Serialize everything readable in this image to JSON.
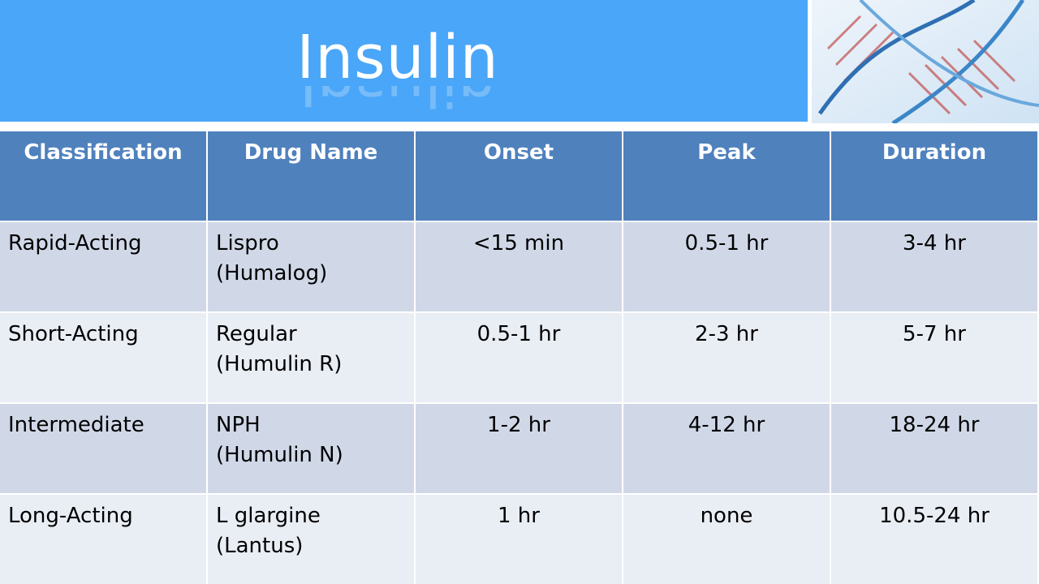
{
  "header": {
    "title": "Insulin"
  },
  "table": {
    "columns": [
      "Classification",
      "Drug Name",
      "Onset",
      "Peak",
      "Duration"
    ],
    "rows": [
      [
        "Rapid-Acting",
        [
          "Lispro",
          "(Humalog)"
        ],
        "<15 min",
        "0.5-1 hr",
        "3-4 hr"
      ],
      [
        "Short-Acting",
        [
          "Regular",
          "(Humulin R)"
        ],
        "0.5-1 hr",
        "2-3 hr",
        "5-7 hr"
      ],
      [
        "Intermediate",
        [
          "NPH",
          "(Humulin N)"
        ],
        "1-2 hr",
        "4-12 hr",
        "18-24 hr"
      ],
      [
        "Long-Acting",
        [
          "L glargine",
          "(Lantus)"
        ],
        "1 hr",
        "none",
        "10.5-24 hr"
      ]
    ]
  }
}
